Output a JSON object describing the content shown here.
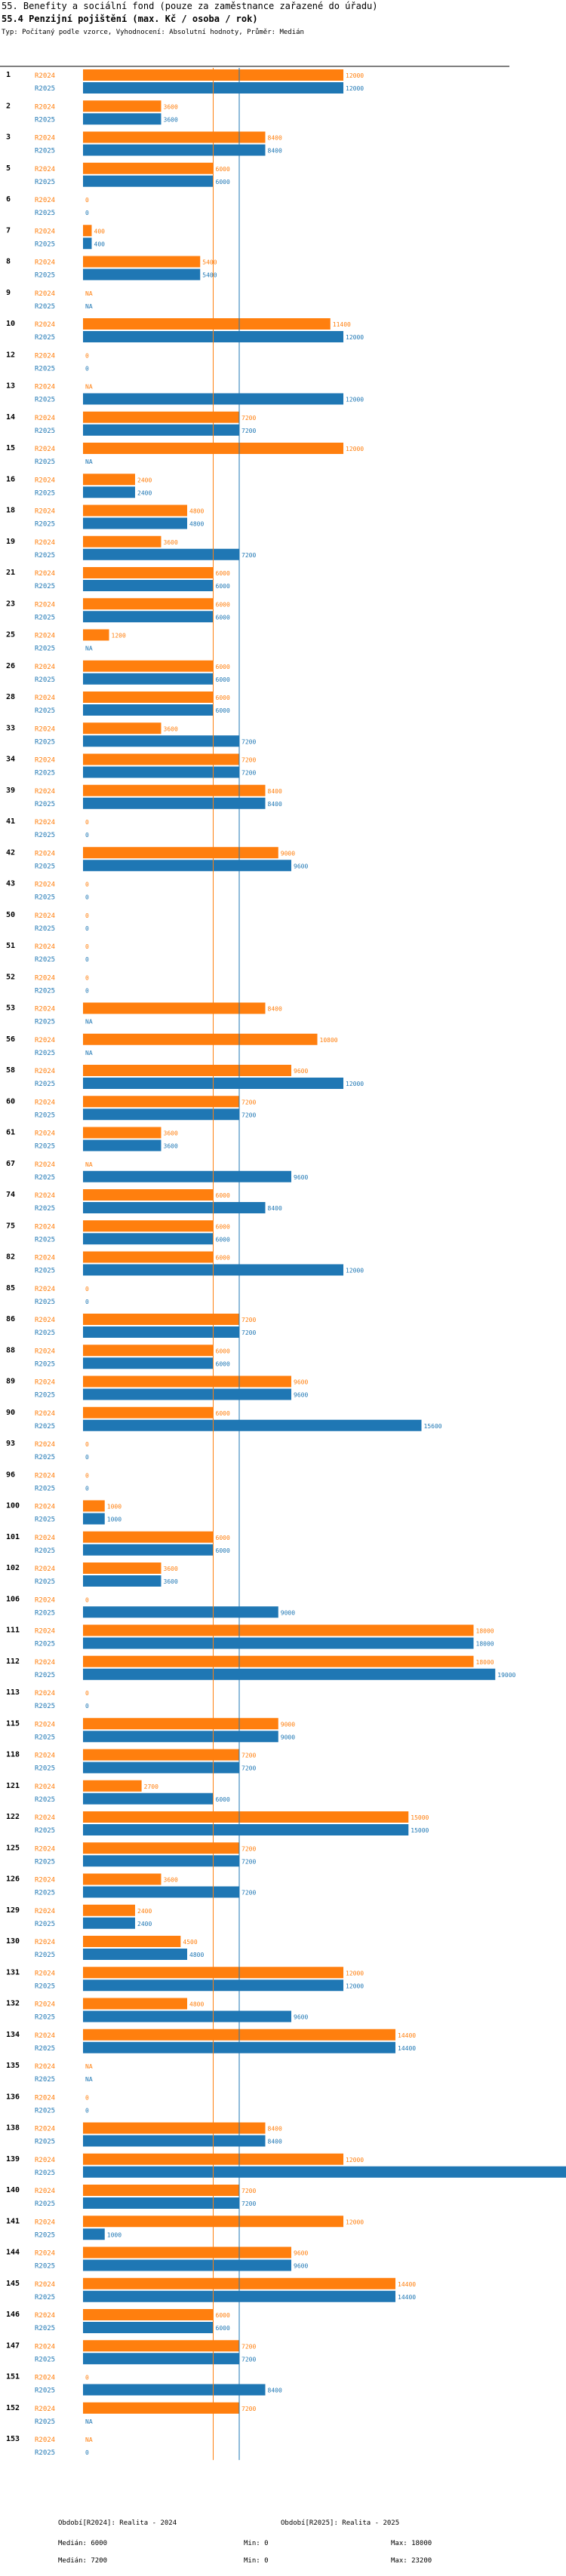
{
  "header": {
    "title": "55. Benefity a sociální fond (pouze za zaměstnance zařazené do úřadu)",
    "subtitle": "55.4 Penzijní pojištění (max. Kč / osoba / rok)",
    "type_line": "Typ: Počítaný podle vzorce, Vyhodnocení: Absolutní hodnoty, Průměr: Medián"
  },
  "colors": {
    "r2024": "#ff7f0e",
    "r2025": "#1f77b4",
    "axis": "#000000"
  },
  "legend": {
    "r2024_label": "Období[R2024]: Realita - 2024",
    "r2025_label": "Období[R2025]: Realita - 2025",
    "r2024_median": "Medián: 6000",
    "r2024_min": "Min: 0",
    "r2024_max": "Max: 18000",
    "r2025_median": "Medián: 7200",
    "r2025_min": "Min: 0",
    "r2025_max": "Max: 23200"
  },
  "chart_data": {
    "type": "bar",
    "orientation": "horizontal",
    "title": "55.4 Penzijní pojištění (max. Kč / osoba / rok)",
    "xlim": [
      0,
      24000
    ],
    "medians": {
      "R2024": 6000,
      "R2025": 7200
    },
    "series_names": [
      "R2024",
      "R2025"
    ],
    "groups": [
      {
        "id": "1",
        "R2024": "12000",
        "R2025": "12000"
      },
      {
        "id": "2",
        "R2024": "3600",
        "R2025": "3600"
      },
      {
        "id": "3",
        "R2024": "8400",
        "R2025": "8400"
      },
      {
        "id": "5",
        "R2024": "6000",
        "R2025": "6000"
      },
      {
        "id": "6",
        "R2024": "0",
        "R2025": "0"
      },
      {
        "id": "7",
        "R2024": "400",
        "R2025": "400"
      },
      {
        "id": "8",
        "R2024": "5400",
        "R2025": "5400"
      },
      {
        "id": "9",
        "R2024": "NA",
        "R2025": "NA"
      },
      {
        "id": "10",
        "R2024": "11400",
        "R2025": "12000"
      },
      {
        "id": "12",
        "R2024": "0",
        "R2025": "0"
      },
      {
        "id": "13",
        "R2024": "NA",
        "R2025": "12000"
      },
      {
        "id": "14",
        "R2024": "7200",
        "R2025": "7200"
      },
      {
        "id": "15",
        "R2024": "12000",
        "R2025": "NA"
      },
      {
        "id": "16",
        "R2024": "2400",
        "R2025": "2400"
      },
      {
        "id": "18",
        "R2024": "4800",
        "R2025": "4800"
      },
      {
        "id": "19",
        "R2024": "3600",
        "R2025": "7200"
      },
      {
        "id": "21",
        "R2024": "6000",
        "R2025": "6000"
      },
      {
        "id": "23",
        "R2024": "6000",
        "R2025": "6000"
      },
      {
        "id": "25",
        "R2024": "1200",
        "R2025": "NA"
      },
      {
        "id": "26",
        "R2024": "6000",
        "R2025": "6000"
      },
      {
        "id": "28",
        "R2024": "6000",
        "R2025": "6000"
      },
      {
        "id": "33",
        "R2024": "3600",
        "R2025": "7200"
      },
      {
        "id": "34",
        "R2024": "7200",
        "R2025": "7200"
      },
      {
        "id": "39",
        "R2024": "8400",
        "R2025": "8400"
      },
      {
        "id": "41",
        "R2024": "0",
        "R2025": "0"
      },
      {
        "id": "42",
        "R2024": "9000",
        "R2025": "9600"
      },
      {
        "id": "43",
        "R2024": "0",
        "R2025": "0"
      },
      {
        "id": "50",
        "R2024": "0",
        "R2025": "0"
      },
      {
        "id": "51",
        "R2024": "0",
        "R2025": "0"
      },
      {
        "id": "52",
        "R2024": "0",
        "R2025": "0"
      },
      {
        "id": "53",
        "R2024": "8400",
        "R2025": "NA"
      },
      {
        "id": "56",
        "R2024": "10800",
        "R2025": "NA"
      },
      {
        "id": "58",
        "R2024": "9600",
        "R2025": "12000"
      },
      {
        "id": "60",
        "R2024": "7200",
        "R2025": "7200"
      },
      {
        "id": "61",
        "R2024": "3600",
        "R2025": "3600"
      },
      {
        "id": "67",
        "R2024": "NA",
        "R2025": "9600"
      },
      {
        "id": "74",
        "R2024": "6000",
        "R2025": "8400"
      },
      {
        "id": "75",
        "R2024": "6000",
        "R2025": "6000"
      },
      {
        "id": "82",
        "R2024": "6000",
        "R2025": "12000"
      },
      {
        "id": "85",
        "R2024": "0",
        "R2025": "0"
      },
      {
        "id": "86",
        "R2024": "7200",
        "R2025": "7200"
      },
      {
        "id": "88",
        "R2024": "6000",
        "R2025": "6000"
      },
      {
        "id": "89",
        "R2024": "9600",
        "R2025": "9600"
      },
      {
        "id": "90",
        "R2024": "6000",
        "R2025": "15600"
      },
      {
        "id": "93",
        "R2024": "0",
        "R2025": "0"
      },
      {
        "id": "96",
        "R2024": "0",
        "R2025": "0"
      },
      {
        "id": "100",
        "R2024": "1000",
        "R2025": "1000"
      },
      {
        "id": "101",
        "R2024": "6000",
        "R2025": "6000"
      },
      {
        "id": "102",
        "R2024": "3600",
        "R2025": "3600"
      },
      {
        "id": "106",
        "R2024": "0",
        "R2025": "9000"
      },
      {
        "id": "111",
        "R2024": "18000",
        "R2025": "18000"
      },
      {
        "id": "112",
        "R2024": "18000",
        "R2025": "19000"
      },
      {
        "id": "113",
        "R2024": "0",
        "R2025": "0"
      },
      {
        "id": "115",
        "R2024": "9000",
        "R2025": "9000"
      },
      {
        "id": "118",
        "R2024": "7200",
        "R2025": "7200"
      },
      {
        "id": "121",
        "R2024": "2700",
        "R2025": "6000"
      },
      {
        "id": "122",
        "R2024": "15000",
        "R2025": "15000"
      },
      {
        "id": "125",
        "R2024": "7200",
        "R2025": "7200"
      },
      {
        "id": "126",
        "R2024": "3600",
        "R2025": "7200"
      },
      {
        "id": "129",
        "R2024": "2400",
        "R2025": "2400"
      },
      {
        "id": "130",
        "R2024": "4500",
        "R2025": "4800"
      },
      {
        "id": "131",
        "R2024": "12000",
        "R2025": "12000"
      },
      {
        "id": "132",
        "R2024": "4800",
        "R2025": "9600"
      },
      {
        "id": "134",
        "R2024": "14400",
        "R2025": "14400"
      },
      {
        "id": "135",
        "R2024": "NA",
        "R2025": "NA"
      },
      {
        "id": "136",
        "R2024": "0",
        "R2025": "0"
      },
      {
        "id": "138",
        "R2024": "8400",
        "R2025": "8400"
      },
      {
        "id": "139",
        "R2024": "12000",
        "R2025": "23200"
      },
      {
        "id": "140",
        "R2024": "7200",
        "R2025": "7200"
      },
      {
        "id": "141",
        "R2024": "12000",
        "R2025": "1000"
      },
      {
        "id": "144",
        "R2024": "9600",
        "R2025": "9600"
      },
      {
        "id": "145",
        "R2024": "14400",
        "R2025": "14400"
      },
      {
        "id": "146",
        "R2024": "6000",
        "R2025": "6000"
      },
      {
        "id": "147",
        "R2024": "7200",
        "R2025": "7200"
      },
      {
        "id": "151",
        "R2024": "0",
        "R2025": "8400"
      },
      {
        "id": "152",
        "R2024": "7200",
        "R2025": "NA"
      },
      {
        "id": "153",
        "R2024": "NA",
        "R2025": "0"
      }
    ]
  }
}
